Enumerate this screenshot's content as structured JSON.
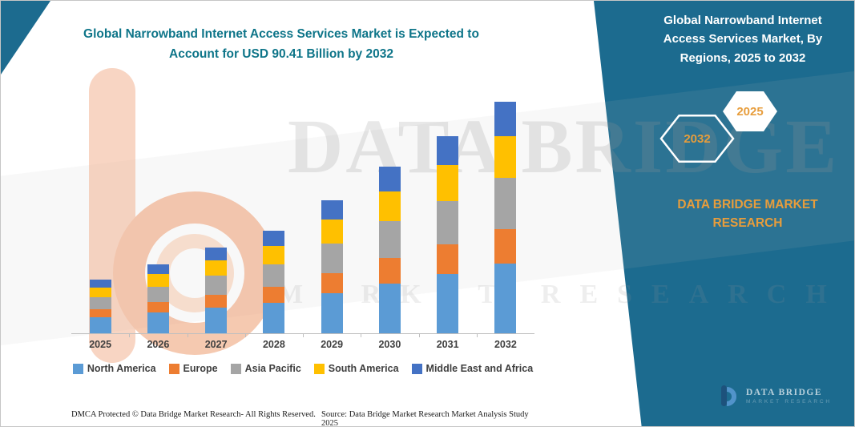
{
  "page": {
    "title_lines": [
      "Global Narrowband Internet Access Services Market is Expected to",
      "Account for USD 90.41 Billion by 2032"
    ]
  },
  "colors": {
    "panel_teal": "#1c6b8f",
    "title_teal": "#0e7589",
    "accent_orange": "#e79d3c"
  },
  "watermark": {
    "line1": "DATA BRIDGE",
    "line2": "MARKET RESEARCH"
  },
  "chart_data": {
    "type": "bar",
    "stacked": true,
    "title": "Global Narrowband Internet Access Services Market is Expected to Account for USD 90.41 Billion by 2032",
    "unit": "USD Billion",
    "categories": [
      "2025",
      "2026",
      "2027",
      "2028",
      "2029",
      "2030",
      "2031",
      "2032"
    ],
    "series": [
      {
        "name": "North America",
        "color": "#5b9bd5",
        "values": [
          6.3,
          8.1,
          10.0,
          12.0,
          15.6,
          19.5,
          23.1,
          27.1
        ]
      },
      {
        "name": "Europe",
        "color": "#ed7d31",
        "values": [
          3.2,
          4.1,
          5.1,
          6.1,
          7.9,
          9.9,
          11.7,
          13.6
        ]
      },
      {
        "name": "Asia Pacific",
        "color": "#a5a5a5",
        "values": [
          4.6,
          5.9,
          7.4,
          8.8,
          11.4,
          14.3,
          16.9,
          19.9
        ]
      },
      {
        "name": "South America",
        "color": "#ffc000",
        "values": [
          3.8,
          4.9,
          6.0,
          7.2,
          9.4,
          11.7,
          13.9,
          16.3
        ]
      },
      {
        "name": "Middle East and Africa",
        "color": "#4472c4",
        "values": [
          3.1,
          4.0,
          5.0,
          5.9,
          7.7,
          9.6,
          11.4,
          13.5
        ]
      }
    ],
    "total_2032": 90.41,
    "ylim": [
      0,
      100
    ],
    "grid": false,
    "y_axis_visible": false,
    "legend_position": "bottom"
  },
  "side_panel": {
    "title": "Global Narrowband Internet Access Services Market, By Regions, 2025 to 2032",
    "hexagon_back": "2032",
    "hexagon_front": "2025",
    "brand_line1": "DATA BRIDGE MARKET",
    "brand_line2": "RESEARCH",
    "logo_name": "DATA BRIDGE",
    "logo_sub": "MARKET RESEARCH"
  },
  "footer": {
    "left": "DMCA Protected © Data Bridge Market Research-  All Rights Reserved.",
    "right": "Source: Data Bridge Market Research  Market Analysis Study 2025"
  }
}
